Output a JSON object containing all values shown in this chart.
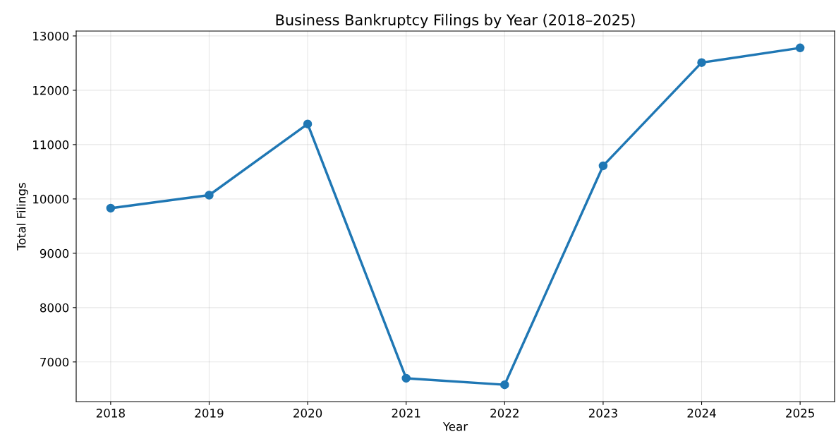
{
  "chart_data": {
    "type": "line",
    "title": "Business Bankruptcy Filings by Year (2018–2025)",
    "xlabel": "Year",
    "ylabel": "Total Filings",
    "x": [
      2018,
      2019,
      2020,
      2021,
      2022,
      2023,
      2024,
      2025
    ],
    "series": [
      {
        "color": "#1f77b4",
        "values": [
          9830,
          10070,
          11380,
          6700,
          6580,
          10610,
          12510,
          12780
        ]
      }
    ],
    "xlim": [
      2017.65,
      2025.35
    ],
    "xticks": [
      2018,
      2019,
      2020,
      2021,
      2022,
      2023,
      2024,
      2025
    ],
    "ylim": [
      6270,
      13090
    ],
    "yticks": [
      7000,
      8000,
      9000,
      10000,
      11000,
      12000,
      13000
    ],
    "grid": true,
    "marker": "circle",
    "line_style": "solid"
  }
}
